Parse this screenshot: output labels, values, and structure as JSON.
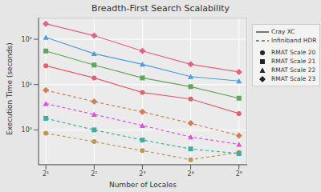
{
  "chart_data": {
    "type": "line",
    "title": "Breadth-First Search Scalability",
    "x_label": "Number of Locales",
    "y_label": "Execution Time (seconds)",
    "log": true,
    "grid": true,
    "legend": "right",
    "x": [
      2,
      4,
      8,
      16,
      32
    ],
    "xlim": [
      1.8,
      36
    ],
    "xticks": [
      {
        "value": 2,
        "label": "2¹"
      },
      {
        "value": 4,
        "label": "2²"
      },
      {
        "value": 8,
        "label": "2³"
      },
      {
        "value": 16,
        "label": "2⁴"
      },
      {
        "value": 32,
        "label": "2⁵"
      }
    ],
    "ylim": [
      0.17,
      300
    ],
    "yticks": [
      {
        "value": 1,
        "label": "10⁰"
      },
      {
        "value": 10,
        "label": "10¹"
      },
      {
        "value": 100,
        "label": "10²"
      }
    ],
    "series": [
      {
        "group": "Cray XC",
        "subgroup": "RMAT Scale 20",
        "color": "#e0606c",
        "marker": "circle",
        "line_style": "solid",
        "values": [
          26,
          14,
          6.7,
          4.8,
          2.3
        ]
      },
      {
        "group": "Cray XC",
        "subgroup": "RMAT Scale 21",
        "color": "#5fa55a",
        "marker": "square",
        "line_style": "solid",
        "values": [
          55,
          27,
          14,
          9,
          5
        ]
      },
      {
        "group": "Cray XC",
        "subgroup": "RMAT Scale 22",
        "color": "#4f9ce0",
        "marker": "triangle",
        "line_style": "solid",
        "values": [
          110,
          48,
          28,
          15,
          12
        ]
      },
      {
        "group": "Cray XC",
        "subgroup": "RMAT Scale 23",
        "color": "#e0637f",
        "marker": "diamond",
        "line_style": "solid",
        "values": [
          220,
          120,
          55,
          28,
          19
        ]
      },
      {
        "group": "Infiniband HDR",
        "subgroup": "RMAT Scale 20",
        "color": "#b89a50",
        "marker": "circle",
        "line_style": "dashed",
        "values": [
          0.85,
          0.55,
          0.35,
          0.22,
          0.32
        ]
      },
      {
        "group": "Infiniband HDR",
        "subgroup": "RMAT Scale 21",
        "color": "#3fae9f",
        "marker": "square",
        "line_style": "dashed",
        "values": [
          1.8,
          1.0,
          0.6,
          0.38,
          0.3
        ]
      },
      {
        "group": "Infiniband HDR",
        "subgroup": "RMAT Scale 22",
        "color": "#e050e0",
        "marker": "triangle",
        "line_style": "dashed",
        "values": [
          3.8,
          2.2,
          1.25,
          0.7,
          0.48
        ]
      },
      {
        "group": "Infiniband HDR",
        "subgroup": "RMAT Scale 23",
        "color": "#cf7f58",
        "marker": "diamond",
        "line_style": "dashed",
        "values": [
          7.5,
          4.2,
          2.5,
          1.4,
          0.75
        ]
      }
    ]
  }
}
